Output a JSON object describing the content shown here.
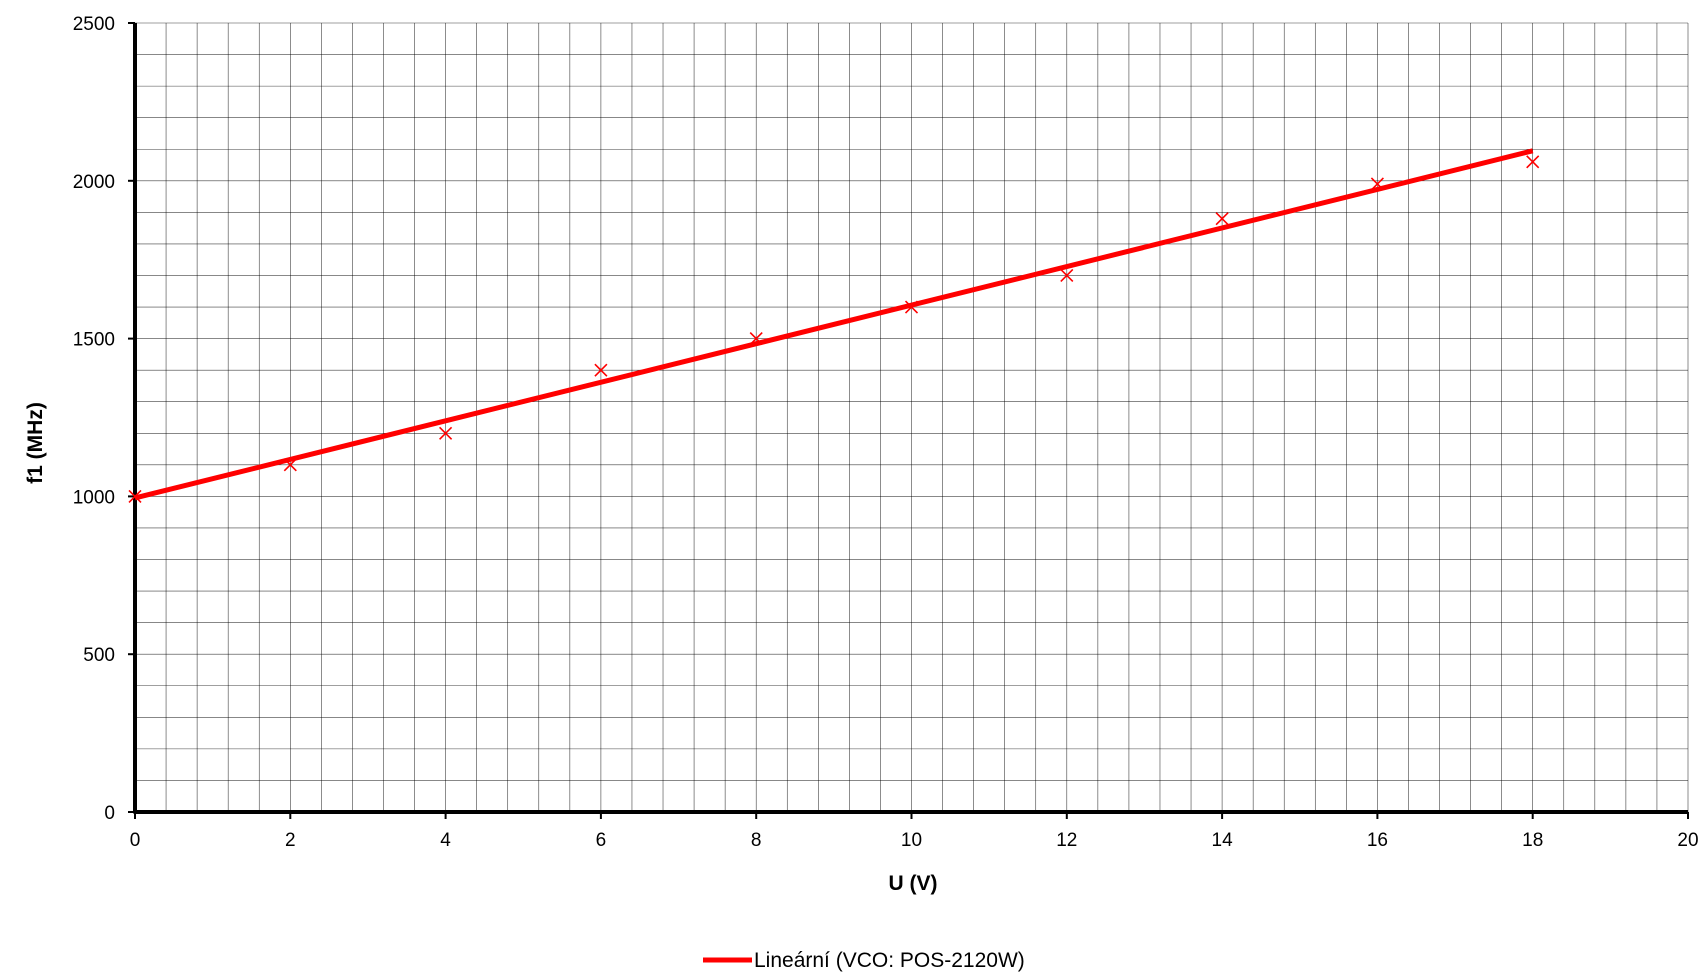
{
  "chart_data": {
    "type": "scatter",
    "title": "",
    "xlabel": "U (V)",
    "ylabel": "f1 (MHz)",
    "xlim": [
      0,
      20
    ],
    "ylim": [
      0,
      2500
    ],
    "x_ticks": [
      "0",
      "2",
      "4",
      "6",
      "8",
      "10",
      "12",
      "14",
      "16",
      "18",
      "20"
    ],
    "y_ticks": [
      "0",
      "500",
      "1000",
      "1500",
      "2000",
      "2500"
    ],
    "x_minor_step": 0.4,
    "y_minor_step": 100,
    "grid": true,
    "legend_position": "bottom",
    "series": [
      {
        "kind": "points",
        "marker": "x",
        "color": "#ff0000",
        "x": [
          0,
          2,
          4,
          6,
          8,
          10,
          12,
          14,
          16,
          18
        ],
        "y": [
          1000,
          1100,
          1200,
          1400,
          1500,
          1600,
          1700,
          1880,
          1990,
          2060
        ]
      },
      {
        "kind": "trendline",
        "name": "Lineární (VCO: POS-2120W)",
        "color": "#ff0000",
        "x": [
          0,
          18
        ],
        "y": [
          995,
          2095
        ]
      }
    ]
  }
}
